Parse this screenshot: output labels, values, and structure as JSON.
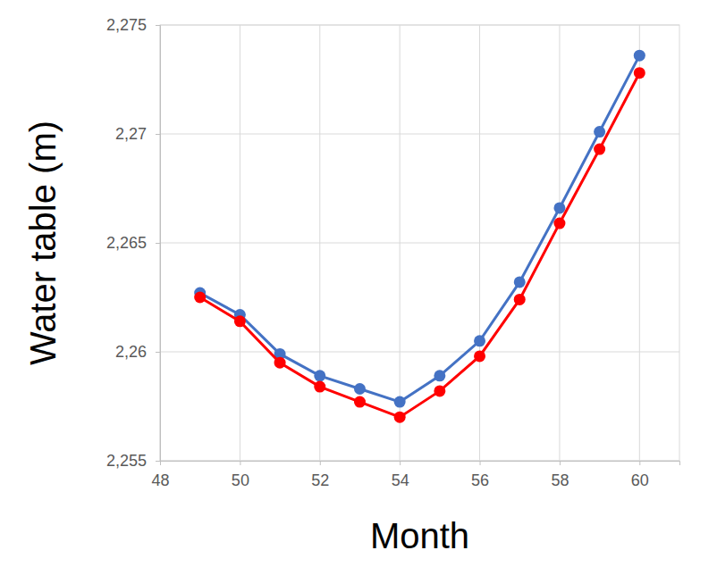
{
  "chart_data": {
    "type": "line",
    "x_label": "Month",
    "y_label": "Water table (m)",
    "x": [
      49,
      50,
      51,
      52,
      53,
      54,
      55,
      56,
      57,
      58,
      59,
      60
    ],
    "series": [
      {
        "color": "#4472c4",
        "marker": "circle",
        "line_style": "solid",
        "values": [
          2.2627,
          2.2617,
          2.2599,
          2.2589,
          2.2583,
          2.2577,
          2.2589,
          2.2605,
          2.2632,
          2.2666,
          2.2701,
          2.2736
        ]
      },
      {
        "color": "#ff0000",
        "marker": "circle",
        "line_style": "solid",
        "values": [
          2.2625,
          2.2614,
          2.2595,
          2.2584,
          2.2577,
          2.257,
          2.2582,
          2.2598,
          2.2624,
          2.2659,
          2.2693,
          2.2728
        ]
      }
    ],
    "xlim": [
      48,
      61
    ],
    "xticks": [
      48,
      50,
      52,
      54,
      56,
      58,
      60
    ],
    "ylim": [
      2.255,
      2.275
    ],
    "yticks": [
      {
        "value": 2.255,
        "label": "2,255"
      },
      {
        "value": 2.26,
        "label": "2,26"
      },
      {
        "value": 2.265,
        "label": "2,265"
      },
      {
        "value": 2.27,
        "label": "2,27"
      },
      {
        "value": 2.275,
        "label": "2,275"
      }
    ],
    "grid": true
  }
}
